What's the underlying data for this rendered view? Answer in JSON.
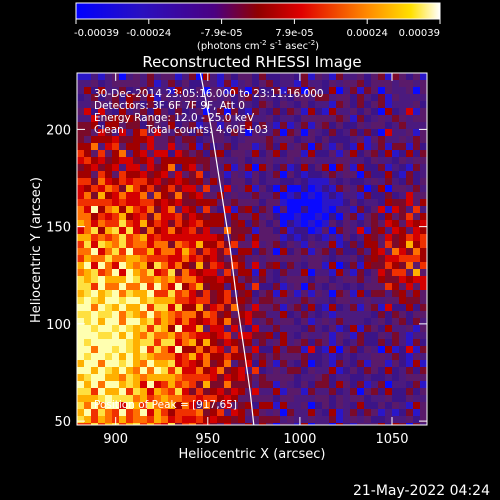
{
  "colorbar": {
    "ticks": [
      "-0.00039",
      "-0.00024",
      "-7.9e-05",
      "7.9e-05",
      "0.00024",
      "0.00039"
    ],
    "unit_text": "(photons cm",
    "unit_sup1": "-2",
    "unit_mid1": " s",
    "unit_sup2": "-1",
    "unit_mid2": " asec",
    "unit_sup3": "-2",
    "unit_end": ")",
    "range": [
      -0.00039,
      0.00039
    ],
    "colors": [
      "#0000ff",
      "#1a1ad0",
      "#4b0082",
      "#8b0000",
      "#d00000",
      "#ff6600",
      "#ffcc00",
      "#ffffff"
    ]
  },
  "chart_data": {
    "type": "heatmap",
    "title": "Reconstructed RHESSI Image",
    "xlabel": "Heliocentric X (arcsec)",
    "ylabel": "Heliocentric Y (arcsec)",
    "xlim": [
      879,
      1069
    ],
    "ylim": [
      48,
      229
    ],
    "xticks": [
      900,
      950,
      1000,
      1050
    ],
    "yticks": [
      50,
      100,
      150,
      200
    ],
    "annotations": {
      "time": "30-Dec-2014 23:05:16.000 to 23:11:16.000",
      "detectors": "Detectors: 3F 6F 7F 9F, Att 0",
      "energy": "Energy Range: 12.0 - 25.0 keV",
      "method": "Clean",
      "counts": "Total counts: 4.60E+03",
      "peak": "Position of Peak = [917,65]"
    },
    "limb_curve_x": [
      946,
      952,
      957,
      962,
      966,
      970,
      973,
      975
    ],
    "limb_curve_y": [
      229,
      200,
      170,
      140,
      110,
      85,
      65,
      48
    ]
  },
  "footer": {
    "date": "21-May-2022 04:24"
  }
}
